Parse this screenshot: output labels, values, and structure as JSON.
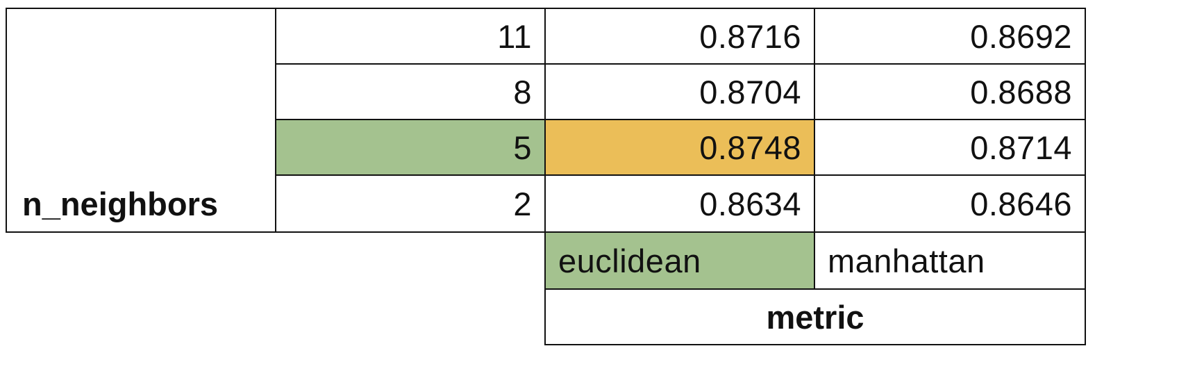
{
  "chart_data": {
    "type": "table",
    "row_header": "n_neighbors",
    "col_header": "metric",
    "columns": [
      "euclidean",
      "manhattan"
    ],
    "rows": [
      {
        "n_neighbors": "11",
        "values": [
          "0.8716",
          "0.8692"
        ]
      },
      {
        "n_neighbors": "8",
        "values": [
          "0.8704",
          "0.8688"
        ]
      },
      {
        "n_neighbors": "5",
        "values": [
          "0.8748",
          "0.8714"
        ]
      },
      {
        "n_neighbors": "2",
        "values": [
          "0.8634",
          "0.8646"
        ]
      }
    ],
    "highlight": {
      "best_row": "5",
      "best_column": "euclidean",
      "best_value": "0.8748",
      "row_highlight_color": "#a4c28f",
      "column_highlight_color": "#a4c28f",
      "cell_highlight_color": "#ebbe58"
    }
  }
}
